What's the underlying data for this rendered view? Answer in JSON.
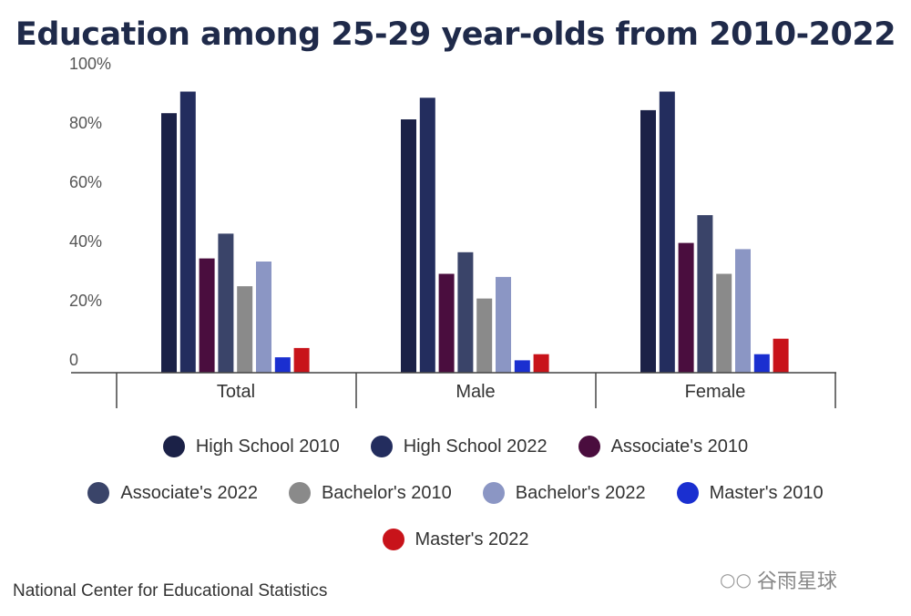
{
  "chart_data": {
    "type": "bar",
    "title": "Education among 25-29 year-olds from 2010-2022",
    "categories": [
      "Total",
      "Male",
      "Female"
    ],
    "series": [
      {
        "name": "High School 2010",
        "color": "#1b2147",
        "values": [
          84,
          82,
          85
        ]
      },
      {
        "name": "High School 2022",
        "color": "#232d5e",
        "values": [
          91,
          89,
          91
        ]
      },
      {
        "name": "Associate's 2010",
        "color": "#4a0d3e",
        "values": [
          37,
          32,
          42
        ]
      },
      {
        "name": "Associate's 2022",
        "color": "#3a4469",
        "values": [
          45,
          39,
          51
        ]
      },
      {
        "name": "Bachelor's 2010",
        "color": "#8a8a8a",
        "values": [
          28,
          24,
          32
        ]
      },
      {
        "name": "Bachelor's 2022",
        "color": "#8b96c4",
        "values": [
          36,
          31,
          40
        ]
      },
      {
        "name": "Master's 2010",
        "color": "#1a2fd0",
        "values": [
          5,
          4,
          6
        ]
      },
      {
        "name": "Master's 2022",
        "color": "#c8131a",
        "values": [
          8,
          6,
          11
        ]
      }
    ],
    "yticks": [
      "100%",
      "80%",
      "60%",
      "40%",
      "20%",
      "0"
    ],
    "ylim": [
      0,
      100
    ],
    "grid": false,
    "legend_position": "bottom"
  },
  "source": "National Center for Educational Statistics",
  "watermark": "谷雨星球"
}
